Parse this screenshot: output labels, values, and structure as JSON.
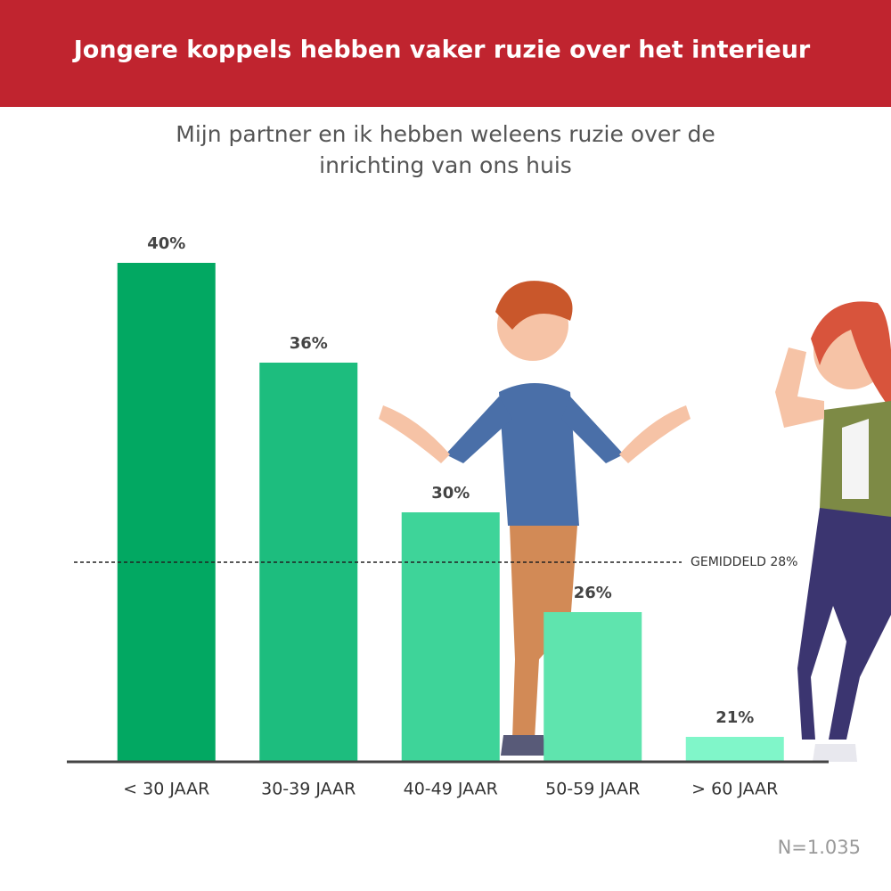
{
  "chart_data": {
    "type": "bar",
    "title": "Jongere koppels hebben vaker ruzie over het interieur",
    "subtitle": [
      "Mijn partner en ik hebben weleens ruzie over de",
      "inrichting van ons huis"
    ],
    "categories": [
      "< 30 JAAR",
      "30-39 JAAR",
      "40-49 JAAR",
      "50-59 JAAR",
      "> 60 JAAR"
    ],
    "values": [
      40,
      36,
      30,
      26,
      21
    ],
    "value_labels": [
      "40%",
      "36%",
      "30%",
      "26%",
      "21%"
    ],
    "colors": [
      "#02a862",
      "#1dbd7e",
      "#3ed499",
      "#5fe4ae",
      "#80f6c9"
    ],
    "ylim": [
      20,
      40
    ],
    "average": 28,
    "average_label": "GEMIDDELD 28%",
    "note": "N=1.035"
  }
}
